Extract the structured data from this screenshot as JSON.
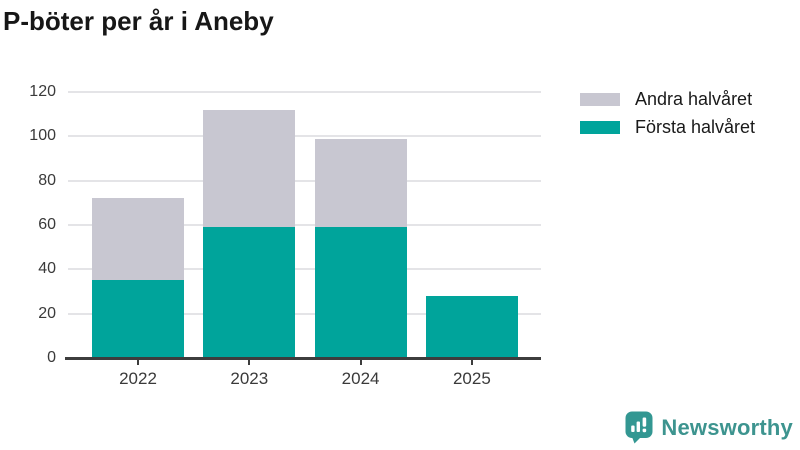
{
  "chart_data": {
    "type": "bar",
    "stacked": true,
    "title": "P-böter per år i Aneby",
    "categories": [
      "2022",
      "2023",
      "2024",
      "2025"
    ],
    "series": [
      {
        "name": "Första halvåret",
        "color": "#00a49b",
        "values": [
          35,
          59,
          59,
          28
        ]
      },
      {
        "name": "Andra halvåret",
        "color": "#c8c7d1",
        "values": [
          37,
          53,
          40,
          0
        ]
      }
    ],
    "totals": [
      72,
      112,
      99,
      28
    ],
    "legend": [
      {
        "label": "Andra halvåret",
        "color": "#c8c7d1"
      },
      {
        "label": "Första halvåret",
        "color": "#00a49b"
      }
    ],
    "legend_position": "right-top",
    "xlabel": "",
    "ylabel": "",
    "ylim": [
      0,
      120
    ],
    "yticks": [
      0,
      20,
      40,
      60,
      80,
      100,
      120
    ],
    "grid": true,
    "colors": {
      "grid": "#e4e4e7",
      "axis": "#3d3d3d",
      "tick_text": "#3a3a3a",
      "title_text": "#171717"
    }
  },
  "branding": {
    "logo_text": "Newsworthy",
    "logo_color": "#3d948f",
    "logo_icon": "bar-chart-speech-bubble-icon"
  }
}
